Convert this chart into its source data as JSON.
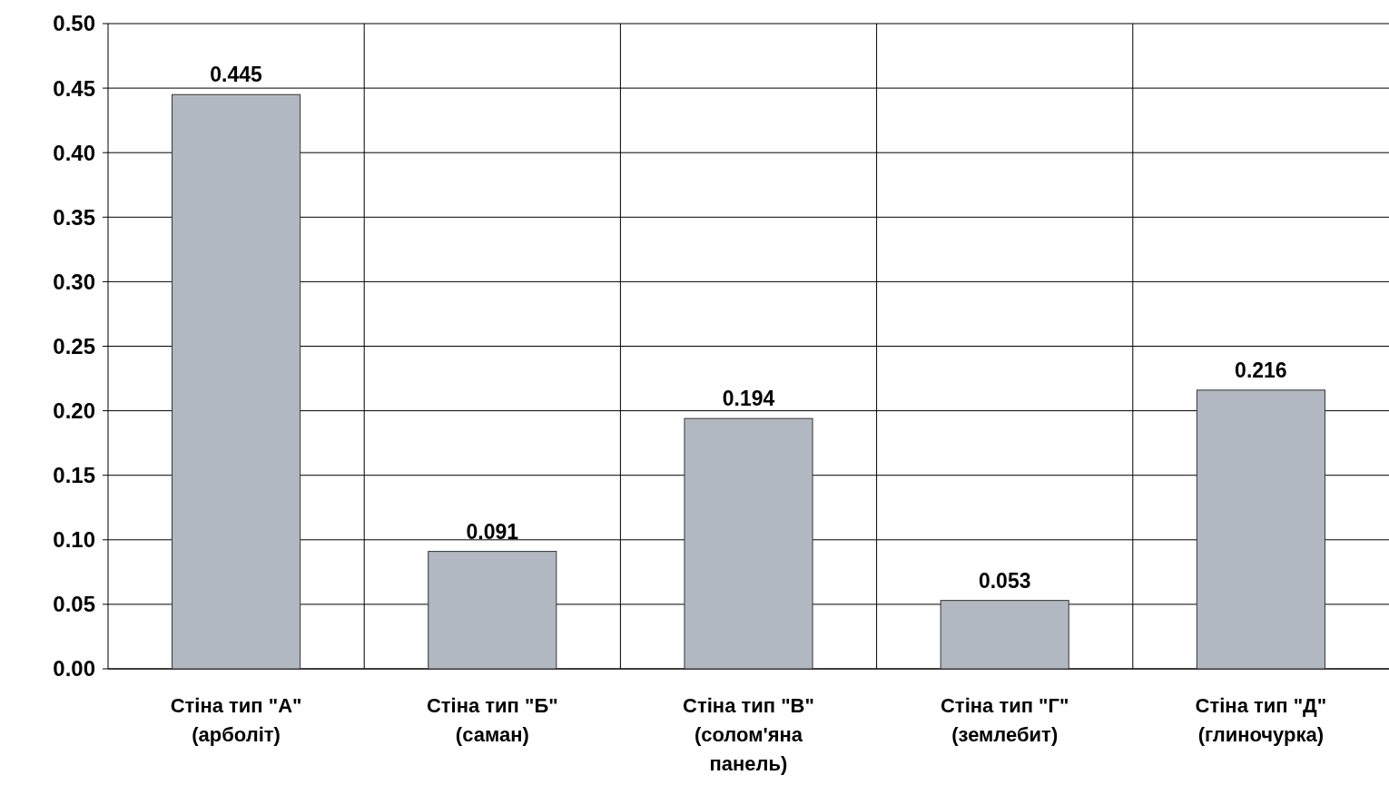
{
  "chart_data": {
    "type": "bar",
    "categories": [
      "Стіна тип \"А\"\n(арболіт)",
      "Стіна тип \"Б\"\n(саман)",
      "Стіна тип \"В\"\n(солом'яна\nпанель)",
      "Стіна тип \"Г\"\n(землебит)",
      "Стіна тип \"Д\"\n(глиночурка)"
    ],
    "values": [
      0.445,
      0.091,
      0.194,
      0.053,
      0.216
    ],
    "color": "#b2b8c2",
    "ylim": [
      0,
      0.5
    ],
    "yticks": [
      {
        "value": 0,
        "label": "0.00"
      },
      {
        "value": 0.05,
        "label": "0.05"
      },
      {
        "value": 0.1,
        "label": "0.10"
      },
      {
        "value": 0.15,
        "label": "0.15"
      },
      {
        "value": 0.2,
        "label": "0.20"
      },
      {
        "value": 0.25,
        "label": "0.25"
      },
      {
        "value": 0.3,
        "label": "0.30"
      },
      {
        "value": 0.35,
        "label": "0.35"
      },
      {
        "value": 0.4,
        "label": "0.40"
      },
      {
        "value": 0.45,
        "label": "0.45"
      },
      {
        "value": 0.5,
        "label": "0.50"
      }
    ],
    "grid": true,
    "data_labels": true
  }
}
